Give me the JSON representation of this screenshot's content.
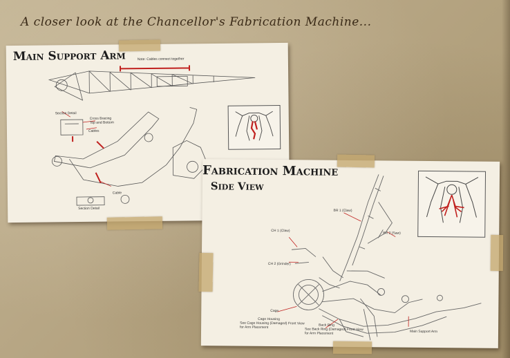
{
  "page_title": "A closer look at the Chancellor's Fabrication Machine...",
  "sheet_left": {
    "heading": "Main Support Arm",
    "labels": {
      "note": "Note: Cables connect together",
      "section_detail_top": "Section Detail",
      "cross_bracing_1": "Cross Bracing",
      "cross_bracing_2": "Top and Bottom",
      "cables": "Cables",
      "cable": "Cable",
      "section_detail_bottom": "Section Detail"
    }
  },
  "sheet_right": {
    "heading": "Fabrication Machine",
    "subheading": "Side View",
    "labels": {
      "br1": "BR 1 (Claw)",
      "br2": "BR 2 (Saw)",
      "ch1": "CH 1 (Claw)",
      "ch2": "CH 2 (Grinder)",
      "cage": "Cage",
      "cage_housing_1": "Cage Housing",
      "cage_housing_2": "See Cage Housing (Damaged) Front View",
      "cage_housing_3": "for Arm Placement",
      "back_ring_1": "Back Ring",
      "back_ring_2": "See Back Ring (Damaged) Front View",
      "back_ring_3": "for Arm Placement",
      "main_support_arm": "Main Support Arm"
    }
  },
  "colors": {
    "background": "#b9a98c",
    "paper": "#f4efe3",
    "tape": "#c4a870",
    "ink": "#1c1c1c",
    "marker_red": "#c0201e"
  }
}
